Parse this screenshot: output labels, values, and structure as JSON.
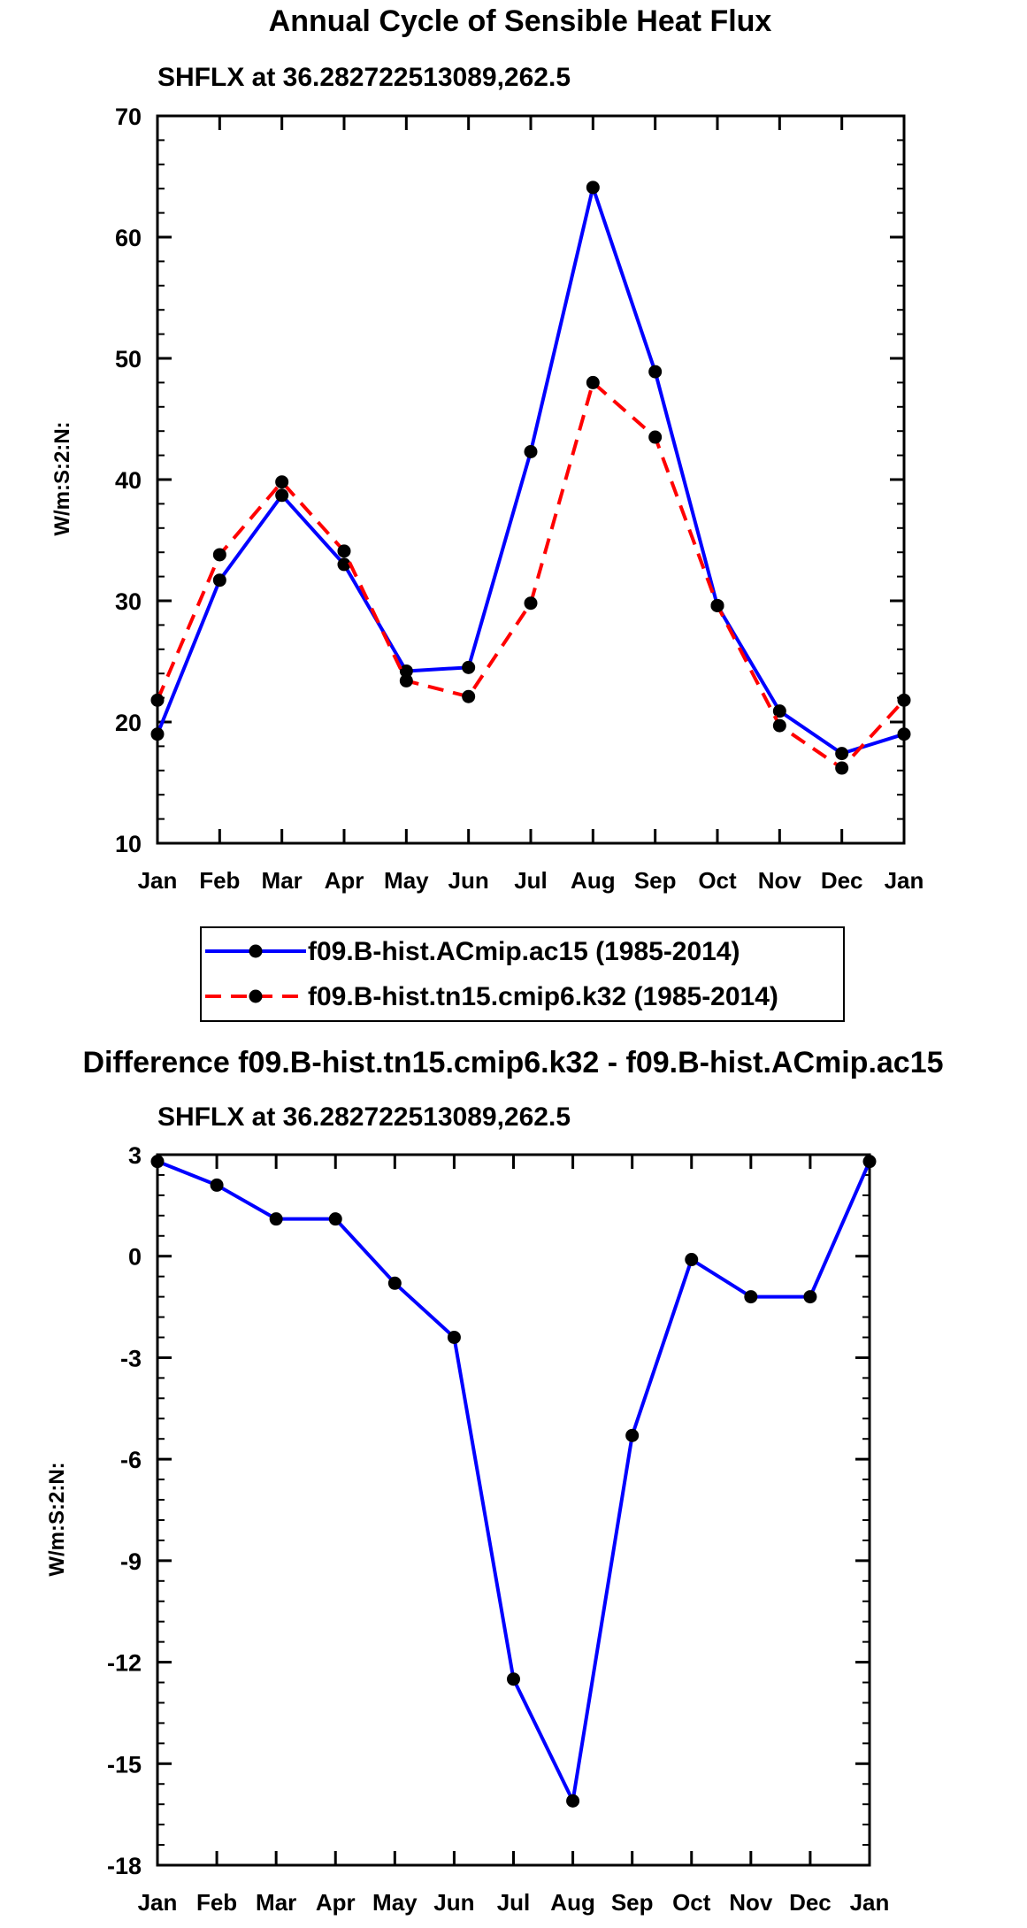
{
  "page": {
    "main_title": "Annual Cycle of Sensible Heat Flux",
    "diff_title": "Difference f09.B-hist.tn15.cmip6.k32 - f09.B-hist.ACmip.ac15"
  },
  "colors": {
    "series1": "#0000ff",
    "series2": "#ff0000",
    "marker": "#000000",
    "axis": "#000000"
  },
  "chart_data": [
    {
      "type": "line",
      "subtitle": "SHFLX at 36.282722513089,262.5",
      "ylabel": "W/m:S:2:N:",
      "xlabel": "",
      "categories": [
        "Jan",
        "Feb",
        "Mar",
        "Apr",
        "May",
        "Jun",
        "Jul",
        "Aug",
        "Sep",
        "Oct",
        "Nov",
        "Dec",
        "Jan"
      ],
      "ylim": [
        10,
        70
      ],
      "yticks": [
        10,
        20,
        30,
        40,
        50,
        60,
        70
      ],
      "yminor_step": 2,
      "series": [
        {
          "name": "f09.B-hist.ACmip.ac15 (1985-2014)",
          "style": "solid",
          "values": [
            19.0,
            31.7,
            38.7,
            33.0,
            24.2,
            24.5,
            42.3,
            64.1,
            48.9,
            29.6,
            20.9,
            17.4,
            19.0
          ]
        },
        {
          "name": "f09.B-hist.tn15.cmip6.k32 (1985-2014)",
          "style": "dashed",
          "values": [
            21.8,
            33.8,
            39.8,
            34.1,
            23.4,
            22.1,
            29.8,
            48.0,
            43.5,
            29.6,
            19.7,
            16.2,
            21.8
          ]
        }
      ],
      "legend": "below"
    },
    {
      "type": "line",
      "subtitle": "SHFLX at 36.282722513089,262.5",
      "ylabel": "W/m:S:2:N:",
      "xlabel": "",
      "categories": [
        "Jan",
        "Feb",
        "Mar",
        "Apr",
        "May",
        "Jun",
        "Jul",
        "Aug",
        "Sep",
        "Oct",
        "Nov",
        "Dec",
        "Jan"
      ],
      "ylim": [
        -18,
        3
      ],
      "yticks": [
        -18,
        -15,
        -12,
        -9,
        -6,
        -3,
        0,
        3
      ],
      "yminor_step": 0.6,
      "series": [
        {
          "name": "difference",
          "style": "solid",
          "values": [
            2.8,
            2.1,
            1.1,
            1.1,
            -0.8,
            -2.4,
            -12.5,
            -16.1,
            -5.3,
            -0.1,
            -1.2,
            -1.2,
            2.8
          ]
        }
      ]
    }
  ]
}
